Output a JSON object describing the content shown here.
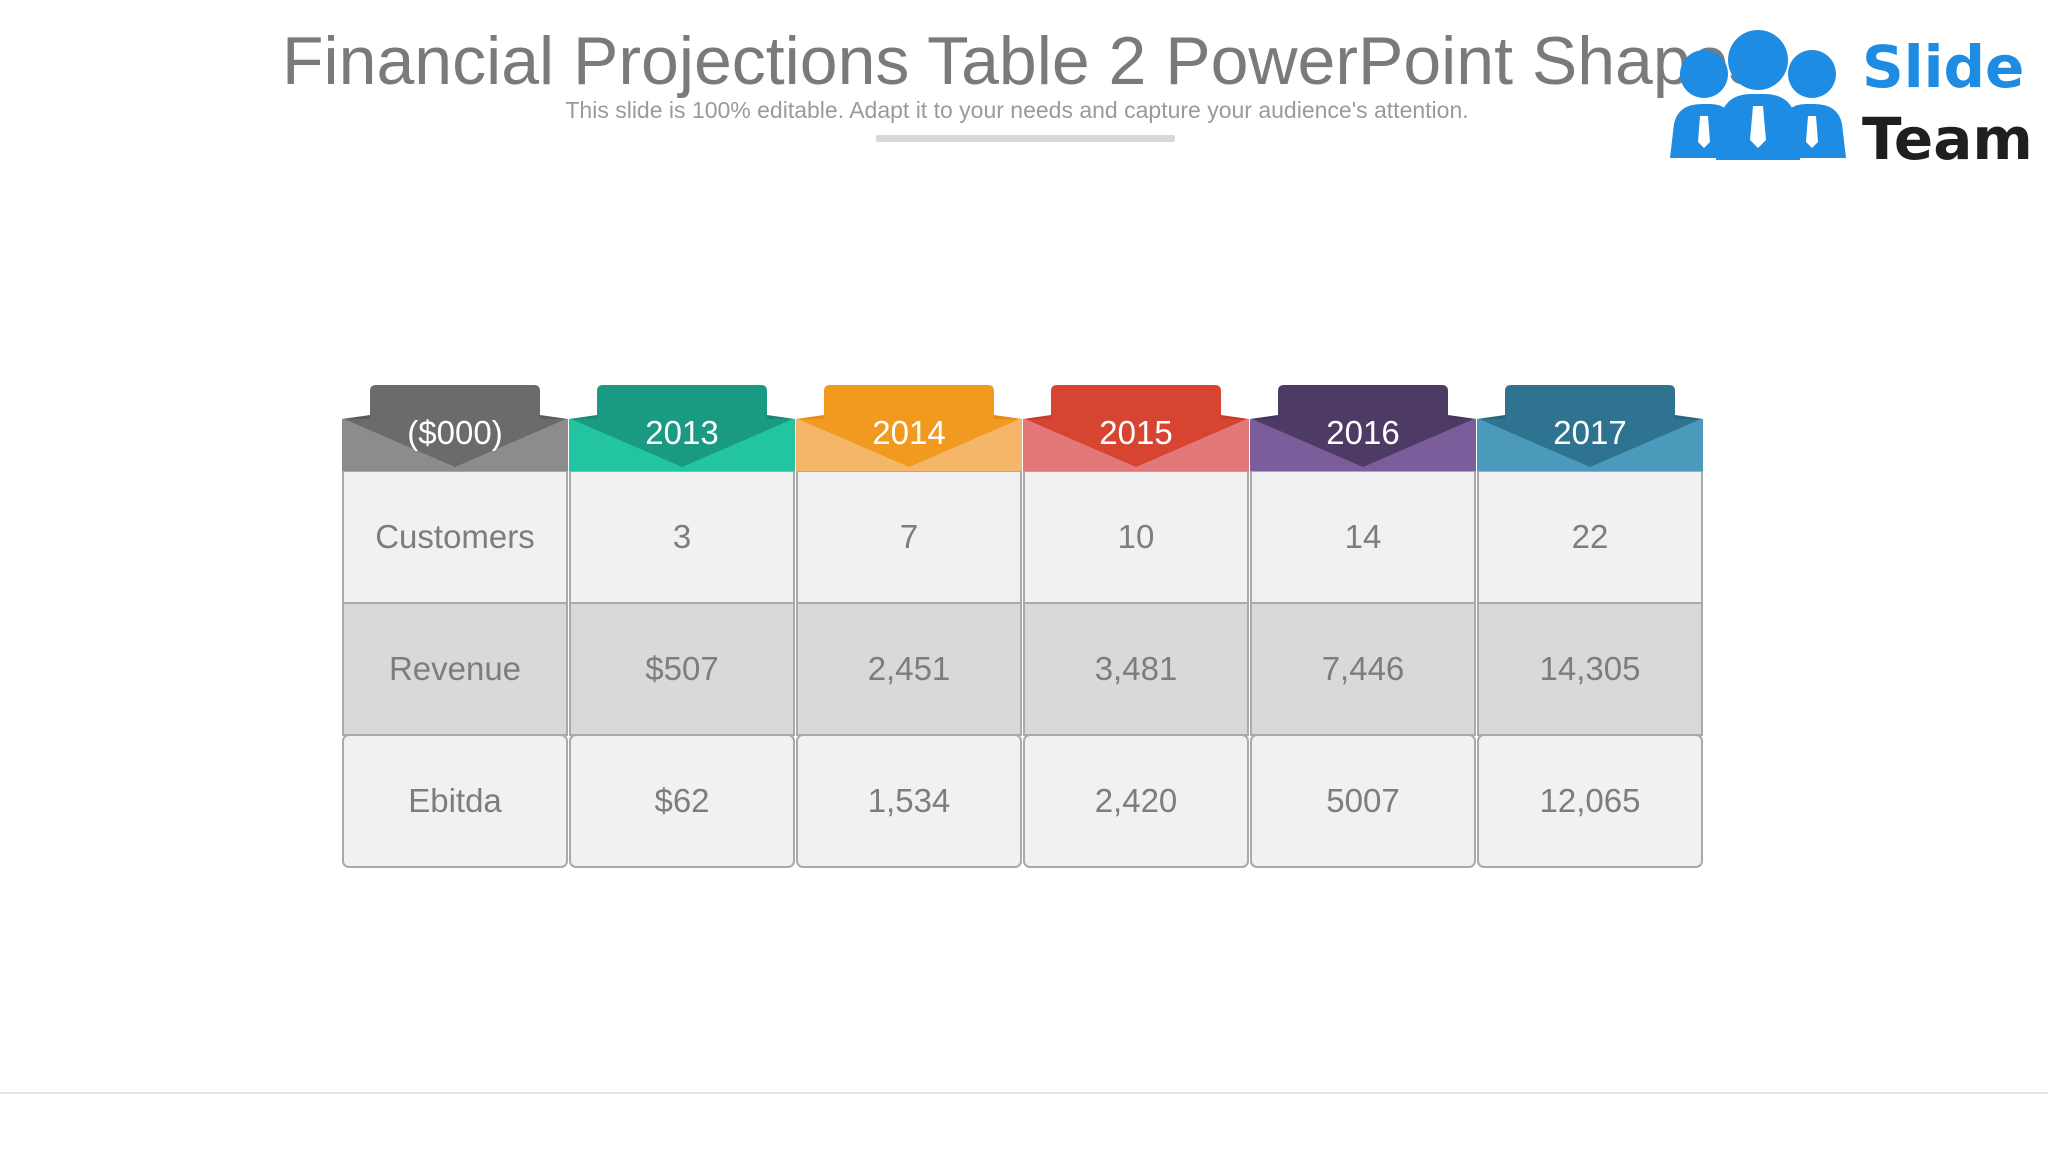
{
  "slide": {
    "title": "Financial Projections Table 2 PowerPoint Shapes",
    "subtitle": "This slide is 100% editable. Adapt it to your needs and capture your audience's attention."
  },
  "logo": {
    "word1": "Slide",
    "word2": "Team"
  },
  "table": {
    "columns": [
      {
        "header": "($000)",
        "colors": {
          "tab": "#6b6b6b",
          "band": "#8c8c8c",
          "fold": "#5a5a5a"
        }
      },
      {
        "header": "2013",
        "colors": {
          "tab": "#1a9a82",
          "band": "#23c4a2",
          "fold": "#158a74"
        }
      },
      {
        "header": "2014",
        "colors": {
          "tab": "#f19a1f",
          "band": "#f5b66a",
          "fold": "#e48c14"
        }
      },
      {
        "header": "2015",
        "colors": {
          "tab": "#d84432",
          "band": "#e3787a",
          "fold": "#c63b2c"
        }
      },
      {
        "header": "2016",
        "colors": {
          "tab": "#4d3b66",
          "band": "#7a5d9a",
          "fold": "#46355d"
        }
      },
      {
        "header": "2017",
        "colors": {
          "tab": "#2e7390",
          "band": "#4b9abb",
          "fold": "#286580"
        }
      }
    ],
    "rows": [
      {
        "shade": "light",
        "cells": [
          "Customers",
          "3",
          "7",
          "10",
          "14",
          "22"
        ]
      },
      {
        "shade": "dark",
        "cells": [
          "Revenue",
          "$507",
          "2,451",
          "3,481",
          "7,446",
          "14,305"
        ]
      },
      {
        "shade": "light",
        "cells": [
          "Ebitda",
          "$62",
          "1,534",
          "2,420",
          "5007",
          "12,065"
        ]
      }
    ],
    "row_colors": {
      "light": "#f1f1f3",
      "dark": "#d9d9db",
      "border": "#a9a9a9"
    }
  }
}
